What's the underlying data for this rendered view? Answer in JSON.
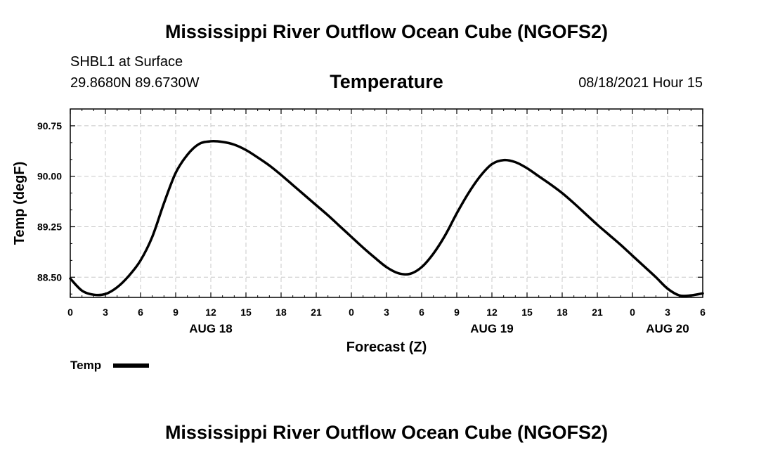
{
  "header": {
    "main_title": "Mississippi River Outflow Ocean Cube (NGOFS2)",
    "station": "SHBL1 at Surface",
    "coordinates": "29.8680N  89.6730W",
    "variable_title": "Temperature",
    "datetime": "08/18/2021 Hour 15"
  },
  "footer": {
    "title": "Mississippi River Outflow Ocean Cube (NGOFS2)"
  },
  "chart_data": {
    "type": "line",
    "title": "Temperature",
    "xlabel": "Forecast (Z)",
    "ylabel": "Temp (degF)",
    "xlim": [
      0,
      54
    ],
    "ylim": [
      88.2,
      91.0
    ],
    "grid": true,
    "x_ticks": [
      0,
      3,
      6,
      9,
      12,
      15,
      18,
      21,
      24,
      27,
      30,
      33,
      36,
      39,
      42,
      45,
      48,
      51,
      54
    ],
    "x_tick_labels": [
      "0",
      "3",
      "6",
      "9",
      "12",
      "15",
      "18",
      "21",
      "0",
      "3",
      "6",
      "9",
      "12",
      "15",
      "18",
      "21",
      "0",
      "3",
      "6"
    ],
    "y_ticks": [
      88.5,
      89.25,
      90.0,
      90.75
    ],
    "y_tick_labels": [
      "88.50",
      "89.25",
      "90.00",
      "90.75"
    ],
    "date_labels": [
      {
        "x": 12,
        "label": "AUG 18"
      },
      {
        "x": 36,
        "label": "AUG 19"
      },
      {
        "x": 51,
        "label": "AUG 20"
      }
    ],
    "legend": {
      "placement": "bottom-left",
      "entries": [
        "Temp"
      ]
    },
    "series": [
      {
        "name": "Temp",
        "color": "#000000",
        "x": [
          0,
          1,
          2,
          3,
          4,
          5,
          6,
          7,
          8,
          9,
          10,
          11,
          12,
          13,
          14,
          15,
          16,
          17,
          18,
          19,
          20,
          21,
          22,
          23,
          24,
          25,
          26,
          27,
          28,
          29,
          30,
          31,
          32,
          33,
          34,
          35,
          36,
          37,
          38,
          39,
          40,
          41,
          42,
          43,
          44,
          45,
          46,
          47,
          48,
          49,
          50,
          51,
          52,
          53,
          54
        ],
        "values": [
          88.48,
          88.3,
          88.24,
          88.25,
          88.35,
          88.52,
          88.75,
          89.1,
          89.6,
          90.05,
          90.32,
          90.48,
          90.52,
          90.51,
          90.47,
          90.39,
          90.28,
          90.16,
          90.02,
          89.87,
          89.72,
          89.57,
          89.42,
          89.26,
          89.1,
          88.94,
          88.79,
          88.65,
          88.56,
          88.55,
          88.65,
          88.85,
          89.12,
          89.45,
          89.75,
          90.0,
          90.18,
          90.24,
          90.21,
          90.12,
          90.0,
          89.88,
          89.75,
          89.6,
          89.44,
          89.28,
          89.13,
          88.98,
          88.82,
          88.66,
          88.5,
          88.33,
          88.23,
          88.23,
          88.26
        ]
      }
    ]
  }
}
